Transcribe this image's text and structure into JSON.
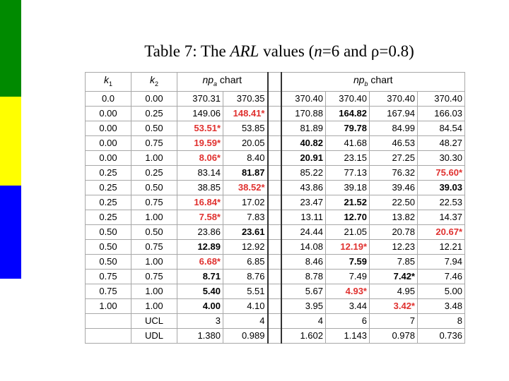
{
  "title": [
    "Table 7: The ",
    "ARL",
    " values (",
    "n",
    "=6 and ",
    "ρ",
    "=0.8)"
  ],
  "table": {
    "header": [
      [
        "k",
        "1"
      ],
      [
        "k",
        "2"
      ],
      [
        "np",
        "a",
        "chart"
      ],
      [
        "np",
        "b",
        "chart"
      ]
    ],
    "rows": [
      [
        "0.0",
        "0.00",
        "370.31",
        "370.35",
        "370.40",
        "370.40",
        "370.40",
        "370.40"
      ],
      [
        "0.00",
        "0.25",
        "149.06",
        "148.41*",
        "170.88",
        "164.82",
        "167.94",
        "166.03"
      ],
      [
        "0.00",
        "0.50",
        "53.51*",
        "53.85",
        "81.89",
        "79.78",
        "84.99",
        "84.54"
      ],
      [
        "0.00",
        "0.75",
        "19.59*",
        "20.05",
        "40.82",
        "41.68",
        "46.53",
        "48.27"
      ],
      [
        "0.00",
        "1.00",
        "8.06*",
        "8.40",
        "20.91",
        "23.15",
        "27.25",
        "30.30"
      ],
      [
        "0.25",
        "0.25",
        "83.14",
        "81.87",
        "85.22",
        "77.13",
        "76.32",
        "75.60*"
      ],
      [
        "0.25",
        "0.50",
        "38.85",
        "38.52*",
        "43.86",
        "39.18",
        "39.46",
        "39.03"
      ],
      [
        "0.25",
        "0.75",
        "16.84*",
        "17.02",
        "23.47",
        "21.52",
        "22.50",
        "22.53"
      ],
      [
        "0.25",
        "1.00",
        "7.58*",
        "7.83",
        "13.11",
        "12.70",
        "13.82",
        "14.37"
      ],
      [
        "0.50",
        "0.50",
        "23.86",
        "23.61",
        "24.44",
        "21.05",
        "20.78",
        "20.67*"
      ],
      [
        "0.50",
        "0.75",
        "12.89",
        "12.92",
        "14.08",
        "12.19*",
        "12.23",
        "12.21"
      ],
      [
        "0.50",
        "1.00",
        "6.68*",
        "6.85",
        "8.46",
        "7.59",
        "7.85",
        "7.94"
      ],
      [
        "0.75",
        "0.75",
        "8.71",
        "8.76",
        "8.78",
        "7.49",
        "7.42*",
        "7.46"
      ],
      [
        "0.75",
        "1.00",
        "5.40",
        "5.51",
        "5.67",
        "4.93*",
        "4.95",
        "5.00"
      ],
      [
        "1.00",
        "1.00",
        "4.00",
        "4.10",
        "3.95",
        "3.44",
        "3.42*",
        "3.48"
      ],
      [
        null,
        "UCL",
        "3",
        "4",
        "4",
        "6",
        "7",
        "8"
      ],
      [
        null,
        "UDL",
        "1.380",
        "0.989",
        "1.602",
        "1.143",
        "0.978",
        "0.736"
      ]
    ]
  }
}
